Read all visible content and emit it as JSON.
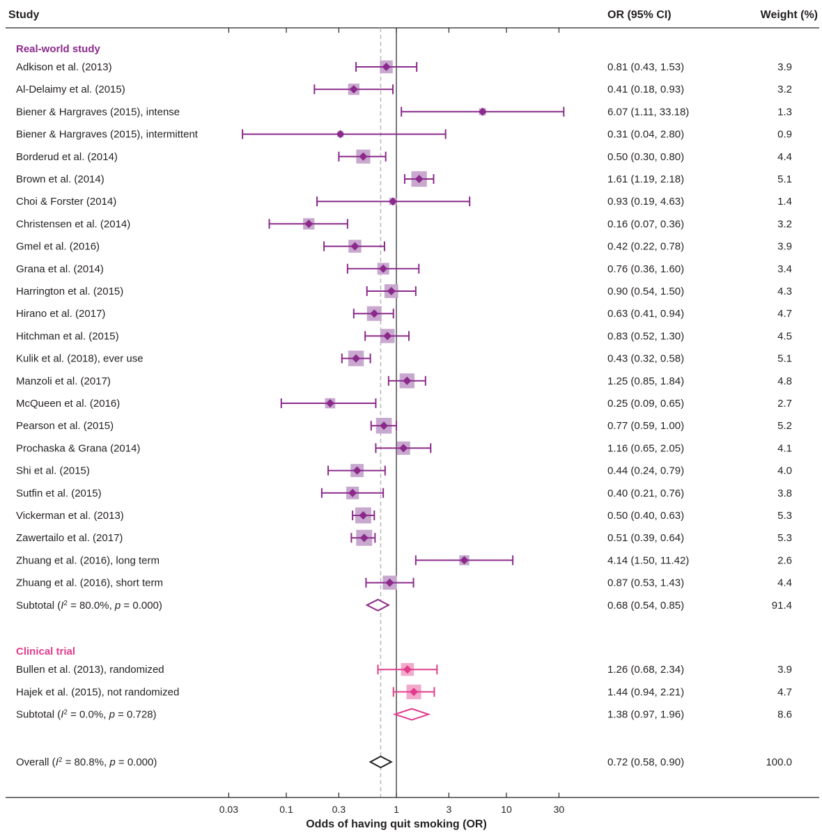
{
  "headers": {
    "study": "Study",
    "or_ci": "OR (95% CI)",
    "weight": "Weight (%)"
  },
  "colors": {
    "real_world": "#8b2a8b",
    "real_world_box": "#c8a8cf",
    "clinical": "#e13d8c",
    "clinical_box": "#f2a9cb",
    "overall": "#231f20",
    "axis": "#231f20",
    "null_line": "#231f20",
    "pooled_line": "#b8b8b8"
  },
  "chart_data": {
    "type": "forest",
    "xlabel": "Odds of having quit smoking (OR)",
    "xscale": "log",
    "xlim": [
      0.01,
      50
    ],
    "xticks": [
      "0.03",
      "0.1",
      "0.3",
      "1",
      "3",
      "10",
      "30"
    ],
    "xtick_values": [
      0.03,
      0.1,
      0.3,
      1,
      3,
      10,
      30
    ],
    "null_value": 1,
    "overall_reference_line": 0.72,
    "groups": [
      {
        "name": "Real-world study",
        "color_key": "real_world",
        "studies": [
          {
            "label": "Adkison et al. (2013)",
            "or": 0.81,
            "lo": 0.43,
            "hi": 1.53,
            "or_text": "0.81 (0.43, 1.53)",
            "weight": 3.9,
            "weight_text": "3.9"
          },
          {
            "label": "Al-Delaimy et al. (2015)",
            "or": 0.41,
            "lo": 0.18,
            "hi": 0.93,
            "or_text": "0.41 (0.18, 0.93)",
            "weight": 3.2,
            "weight_text": "3.2"
          },
          {
            "label": "Biener & Hargraves (2015), intense",
            "or": 6.07,
            "lo": 1.11,
            "hi": 33.18,
            "or_text": "6.07 (1.11, 33.18)",
            "weight": 1.3,
            "weight_text": "1.3"
          },
          {
            "label": "Biener & Hargraves (2015), intermittent",
            "or": 0.31,
            "lo": 0.04,
            "hi": 2.8,
            "or_text": "0.31 (0.04, 2.80)",
            "weight": 0.9,
            "weight_text": "0.9"
          },
          {
            "label": "Borderud et al. (2014)",
            "or": 0.5,
            "lo": 0.3,
            "hi": 0.8,
            "or_text": "0.50 (0.30, 0.80)",
            "weight": 4.4,
            "weight_text": "4.4"
          },
          {
            "label": "Brown et al. (2014)",
            "or": 1.61,
            "lo": 1.19,
            "hi": 2.18,
            "or_text": "1.61 (1.19, 2.18)",
            "weight": 5.1,
            "weight_text": "5.1"
          },
          {
            "label": "Choi & Forster (2014)",
            "or": 0.93,
            "lo": 0.19,
            "hi": 4.63,
            "or_text": "0.93 (0.19, 4.63)",
            "weight": 1.4,
            "weight_text": "1.4"
          },
          {
            "label": "Christensen et al. (2014)",
            "or": 0.16,
            "lo": 0.07,
            "hi": 0.36,
            "or_text": "0.16 (0.07, 0.36)",
            "weight": 3.2,
            "weight_text": "3.2"
          },
          {
            "label": "Gmel et al. (2016)",
            "or": 0.42,
            "lo": 0.22,
            "hi": 0.78,
            "or_text": "0.42 (0.22, 0.78)",
            "weight": 3.9,
            "weight_text": "3.9"
          },
          {
            "label": "Grana et al. (2014)",
            "or": 0.76,
            "lo": 0.36,
            "hi": 1.6,
            "or_text": "0.76 (0.36, 1.60)",
            "weight": 3.4,
            "weight_text": "3.4"
          },
          {
            "label": "Harrington et al. (2015)",
            "or": 0.9,
            "lo": 0.54,
            "hi": 1.5,
            "or_text": "0.90 (0.54, 1.50)",
            "weight": 4.3,
            "weight_text": "4.3"
          },
          {
            "label": "Hirano et al. (2017)",
            "or": 0.63,
            "lo": 0.41,
            "hi": 0.94,
            "or_text": "0.63 (0.41, 0.94)",
            "weight": 4.7,
            "weight_text": "4.7"
          },
          {
            "label": "Hitchman et al. (2015)",
            "or": 0.83,
            "lo": 0.52,
            "hi": 1.3,
            "or_text": "0.83 (0.52, 1.30)",
            "weight": 4.5,
            "weight_text": "4.5"
          },
          {
            "label": "Kulik et al. (2018), ever use",
            "or": 0.43,
            "lo": 0.32,
            "hi": 0.58,
            "or_text": "0.43 (0.32, 0.58)",
            "weight": 5.1,
            "weight_text": "5.1"
          },
          {
            "label": "Manzoli et al. (2017)",
            "or": 1.25,
            "lo": 0.85,
            "hi": 1.84,
            "or_text": "1.25 (0.85, 1.84)",
            "weight": 4.8,
            "weight_text": "4.8"
          },
          {
            "label": "McQueen et al. (2016)",
            "or": 0.25,
            "lo": 0.09,
            "hi": 0.65,
            "or_text": "0.25 (0.09, 0.65)",
            "weight": 2.7,
            "weight_text": "2.7"
          },
          {
            "label": "Pearson et al. (2015)",
            "or": 0.77,
            "lo": 0.59,
            "hi": 1.0,
            "or_text": "0.77 (0.59, 1.00)",
            "weight": 5.2,
            "weight_text": "5.2"
          },
          {
            "label": "Prochaska & Grana (2014)",
            "or": 1.16,
            "lo": 0.65,
            "hi": 2.05,
            "or_text": "1.16 (0.65, 2.05)",
            "weight": 4.1,
            "weight_text": "4.1"
          },
          {
            "label": "Shi et al. (2015)",
            "or": 0.44,
            "lo": 0.24,
            "hi": 0.79,
            "or_text": "0.44 (0.24, 0.79)",
            "weight": 4.0,
            "weight_text": "4.0"
          },
          {
            "label": "Sutfin et al. (2015)",
            "or": 0.4,
            "lo": 0.21,
            "hi": 0.76,
            "or_text": "0.40 (0.21, 0.76)",
            "weight": 3.8,
            "weight_text": "3.8"
          },
          {
            "label": "Vickerman et al. (2013)",
            "or": 0.5,
            "lo": 0.4,
            "hi": 0.63,
            "or_text": "0.50 (0.40, 0.63)",
            "weight": 5.3,
            "weight_text": "5.3"
          },
          {
            "label": "Zawertailo et al. (2017)",
            "or": 0.51,
            "lo": 0.39,
            "hi": 0.64,
            "or_text": "0.51 (0.39, 0.64)",
            "weight": 5.3,
            "weight_text": "5.3"
          },
          {
            "label": "Zhuang et al. (2016), long term",
            "or": 4.14,
            "lo": 1.5,
            "hi": 11.42,
            "or_text": "4.14 (1.50, 11.42)",
            "weight": 2.6,
            "weight_text": "2.6"
          },
          {
            "label": "Zhuang et al. (2016), short term",
            "or": 0.87,
            "lo": 0.53,
            "hi": 1.43,
            "or_text": "0.87 (0.53, 1.43)",
            "weight": 4.4,
            "weight_text": "4.4"
          }
        ],
        "subtotal": {
          "label": "Subtotal",
          "i2": "80.0%",
          "p": "0.000",
          "or": 0.68,
          "lo": 0.54,
          "hi": 0.85,
          "or_text": "0.68 (0.54, 0.85)",
          "weight_text": "91.4"
        }
      },
      {
        "name": "Clinical trial",
        "color_key": "clinical",
        "studies": [
          {
            "label": "Bullen et al. (2013), randomized",
            "or": 1.26,
            "lo": 0.68,
            "hi": 2.34,
            "or_text": "1.26 (0.68, 2.34)",
            "weight": 3.9,
            "weight_text": "3.9"
          },
          {
            "label": "Hajek et al. (2015), not randomized",
            "or": 1.44,
            "lo": 0.94,
            "hi": 2.21,
            "or_text": "1.44 (0.94, 2.21)",
            "weight": 4.7,
            "weight_text": "4.7"
          }
        ],
        "subtotal": {
          "label": "Subtotal",
          "i2": "0.0%",
          "p": "0.728",
          "or": 1.38,
          "lo": 0.97,
          "hi": 1.96,
          "or_text": "1.38 (0.97, 1.96)",
          "weight_text": "8.6"
        }
      }
    ],
    "overall": {
      "label": "Overall",
      "i2": "80.8%",
      "p": "0.000",
      "or": 0.72,
      "lo": 0.58,
      "hi": 0.9,
      "or_text": "0.72 (0.58, 0.90)",
      "weight_text": "100.0"
    }
  }
}
